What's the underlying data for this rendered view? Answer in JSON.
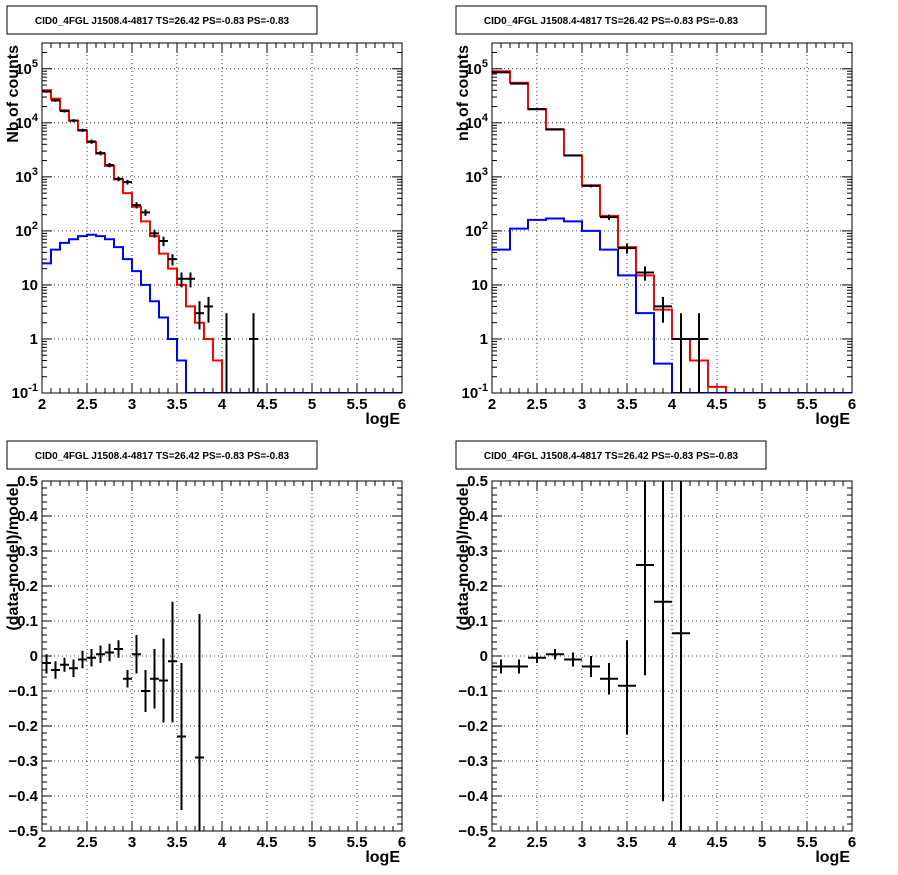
{
  "chart_data": [
    {
      "type": "line",
      "subtype": "histogram",
      "title": "CID0_4FGL J1508.4-4817 TS=26.42 PS=-0.83 PS=-0.83",
      "xlabel": "logE",
      "ylabel": "Nb of counts",
      "xlim": [
        2,
        6
      ],
      "ylim": [
        0.1,
        300000
      ],
      "yscale": "log",
      "grid": true,
      "x_ticks": [
        "2",
        "2.5",
        "3",
        "3.5",
        "4",
        "4.5",
        "5",
        "5.5",
        "6"
      ],
      "y_ticks": [
        "10^{-1}",
        "1",
        "10",
        "10^{2}",
        "10^{3}",
        "10^{4}",
        "10^{5}"
      ],
      "bin_edges": [
        2.0,
        2.1,
        2.2,
        2.3,
        2.4,
        2.5,
        2.6,
        2.7,
        2.8,
        2.9,
        3.0,
        3.1,
        3.2,
        3.3,
        3.4,
        3.5,
        3.6,
        3.7,
        3.8,
        3.9,
        4.0,
        4.1,
        4.2,
        4.3,
        4.4,
        4.5,
        4.6,
        4.7,
        4.8,
        4.9,
        5.0,
        5.1,
        5.2,
        5.3,
        5.4,
        5.5,
        5.6,
        5.7,
        5.8,
        5.9,
        6.0
      ],
      "series": [
        {
          "role": "total model",
          "color": "#ff0000",
          "values": [
            40000,
            28000,
            17000,
            11000,
            7200,
            4400,
            2700,
            1600,
            900,
            500,
            280,
            150,
            80,
            38,
            20,
            10,
            4,
            2,
            1,
            0.4,
            0.1,
            0.1,
            0.1,
            0.1,
            0.1,
            0.1,
            0.1,
            0.1,
            0.1,
            0.1,
            0.1,
            0.1,
            0.1,
            0.1,
            0.1,
            0.1,
            0.1,
            0.1,
            0.1,
            0.1
          ]
        },
        {
          "role": "source model",
          "color": "#0000ff",
          "values": [
            25,
            45,
            60,
            70,
            80,
            85,
            80,
            70,
            50,
            30,
            18,
            10,
            5,
            2.5,
            1,
            0.4,
            0.1,
            0.1,
            0.1,
            0.1,
            0.1,
            0.1,
            0.1,
            0.1,
            0.1,
            0.1,
            0.1,
            0.1,
            0.1,
            0.1,
            0.1,
            0.1,
            0.1,
            0.1,
            0.1,
            0.1,
            0.1,
            0.1,
            0.1,
            0.1
          ]
        },
        {
          "role": "data",
          "color": "#000000",
          "kind": "points",
          "x": [
            2.05,
            2.15,
            2.25,
            2.35,
            2.45,
            2.55,
            2.65,
            2.75,
            2.85,
            2.95,
            3.05,
            3.15,
            3.25,
            3.35,
            3.45,
            3.55,
            3.65,
            3.75,
            3.85,
            4.05,
            4.35
          ],
          "y": [
            38000,
            26000,
            16500,
            11000,
            7300,
            4500,
            2750,
            1650,
            920,
            800,
            300,
            220,
            90,
            65,
            30,
            13,
            13,
            3,
            4,
            1,
            1
          ],
          "ylo": [
            36000,
            24500,
            15500,
            10300,
            6800,
            4100,
            2500,
            1500,
            830,
            720,
            260,
            190,
            75,
            52,
            23,
            9,
            9,
            1.5,
            2,
            0.1,
            0.1
          ],
          "yhi": [
            40000,
            27500,
            17500,
            11700,
            7800,
            4900,
            3000,
            1800,
            1010,
            880,
            340,
            250,
            105,
            78,
            37,
            17,
            17,
            5,
            6,
            3,
            3
          ]
        }
      ]
    },
    {
      "type": "line",
      "subtype": "histogram",
      "title": "CID0_4FGL J1508.4-4817 TS=26.42 PS=-0.83 PS=-0.83",
      "xlabel": "logE",
      "ylabel": "nb of counts",
      "xlim": [
        2,
        6
      ],
      "ylim": [
        0.1,
        300000
      ],
      "yscale": "log",
      "grid": true,
      "x_ticks": [
        "2",
        "2.5",
        "3",
        "3.5",
        "4",
        "4.5",
        "5",
        "5.5",
        "6"
      ],
      "y_ticks": [
        "10^{-1}",
        "1",
        "10",
        "10^{2}",
        "10^{3}",
        "10^{4}",
        "10^{5}"
      ],
      "bin_edges": [
        2.0,
        2.2,
        2.4,
        2.6,
        2.8,
        3.0,
        3.2,
        3.4,
        3.6,
        3.8,
        4.0,
        4.2,
        4.4,
        4.6,
        4.8,
        5.0,
        5.2,
        5.4,
        5.6,
        5.8,
        6.0
      ],
      "series": [
        {
          "role": "total model",
          "color": "#ff0000",
          "values": [
            90000,
            55000,
            18000,
            7500,
            2500,
            700,
            190,
            50,
            15,
            3.5,
            1,
            0.4,
            0.13,
            0.1,
            0.1,
            0.1,
            0.1,
            0.1,
            0.1,
            0.1
          ]
        },
        {
          "role": "source model",
          "color": "#0000ff",
          "values": [
            45,
            110,
            160,
            170,
            150,
            100,
            45,
            15,
            3,
            0.35,
            0.1,
            0.1,
            0.1,
            0.1,
            0.1,
            0.1,
            0.1,
            0.1,
            0.1,
            0.1
          ]
        },
        {
          "role": "data",
          "color": "#000000",
          "kind": "points",
          "x": [
            2.1,
            2.3,
            2.5,
            2.7,
            2.9,
            3.1,
            3.3,
            3.5,
            3.7,
            3.9,
            4.1,
            4.3
          ],
          "y": [
            86000,
            53000,
            17800,
            7600,
            2480,
            680,
            180,
            48,
            17,
            4,
            1,
            1
          ],
          "ylo": [
            85000,
            52000,
            17500,
            7400,
            2400,
            640,
            160,
            38,
            12,
            2,
            0.1,
            0.1
          ],
          "yhi": [
            87000,
            54000,
            18100,
            7800,
            2560,
            720,
            200,
            58,
            22,
            6,
            3,
            3
          ]
        }
      ]
    },
    {
      "type": "scatter",
      "title": "CID0_4FGL J1508.4-4817 TS=26.42 PS=-0.83 PS=-0.83",
      "xlabel": "logE",
      "ylabel": "(data-model)/model",
      "xlim": [
        2,
        6
      ],
      "ylim": [
        -0.5,
        0.5
      ],
      "grid": true,
      "x_ticks": [
        "2",
        "2.5",
        "3",
        "3.5",
        "4",
        "4.5",
        "5",
        "5.5",
        "6"
      ],
      "y_ticks": [
        "−0.5",
        "−0.4",
        "−0.3",
        "−0.2",
        "−0.1",
        "0",
        "0.1",
        "0.2",
        "0.3",
        "0.4",
        "0.5"
      ],
      "series": [
        {
          "role": "residuals",
          "color": "#000000",
          "x": [
            2.05,
            2.15,
            2.25,
            2.35,
            2.45,
            2.55,
            2.65,
            2.75,
            2.85,
            2.95,
            3.05,
            3.15,
            3.25,
            3.35,
            3.45,
            3.55,
            3.75
          ],
          "xerr": 0.05,
          "y": [
            -0.02,
            -0.04,
            -0.025,
            -0.035,
            -0.01,
            -0.005,
            0.005,
            0.01,
            0.02,
            -0.065,
            0.005,
            -0.1,
            -0.065,
            -0.07,
            -0.015,
            -0.23,
            -0.29
          ],
          "ylo": [
            -0.05,
            -0.065,
            -0.045,
            -0.06,
            -0.035,
            -0.03,
            -0.02,
            -0.015,
            -0.005,
            -0.09,
            -0.05,
            -0.16,
            -0.15,
            -0.19,
            -0.19,
            -0.44,
            -0.5
          ],
          "yhi": [
            0.005,
            -0.015,
            -0.005,
            -0.01,
            0.015,
            0.02,
            0.03,
            0.035,
            0.045,
            -0.04,
            0.06,
            -0.04,
            0.02,
            0.05,
            0.155,
            -0.02,
            0.12
          ]
        }
      ]
    },
    {
      "type": "scatter",
      "title": "CID0_4FGL J1508.4-4817 TS=26.42 PS=-0.83 PS=-0.83",
      "xlabel": "logE",
      "ylabel": "(data-model)/model",
      "xlim": [
        2,
        6
      ],
      "ylim": [
        -0.5,
        0.5
      ],
      "grid": true,
      "x_ticks": [
        "2",
        "2.5",
        "3",
        "3.5",
        "4",
        "4.5",
        "5",
        "5.5",
        "6"
      ],
      "y_ticks": [
        "−0.5",
        "−0.4",
        "−0.3",
        "−0.2",
        "−0.1",
        "0",
        "0.1",
        "0.2",
        "0.3",
        "0.4",
        "0.5"
      ],
      "series": [
        {
          "role": "residuals",
          "color": "#000000",
          "x": [
            2.1,
            2.3,
            2.5,
            2.7,
            2.9,
            3.1,
            3.3,
            3.5,
            3.7,
            3.9,
            4.1
          ],
          "xerr": 0.1,
          "y": [
            -0.03,
            -0.03,
            -0.005,
            0.005,
            -0.01,
            -0.03,
            -0.065,
            -0.085,
            0.26,
            0.155,
            0.065
          ],
          "ylo": [
            -0.05,
            -0.05,
            -0.02,
            -0.01,
            -0.03,
            -0.06,
            -0.11,
            -0.225,
            -0.055,
            -0.415,
            -0.5
          ],
          "yhi": [
            -0.01,
            -0.01,
            0.01,
            0.02,
            0.01,
            0.0,
            -0.02,
            0.045,
            0.5,
            0.5,
            0.5
          ]
        }
      ]
    }
  ]
}
